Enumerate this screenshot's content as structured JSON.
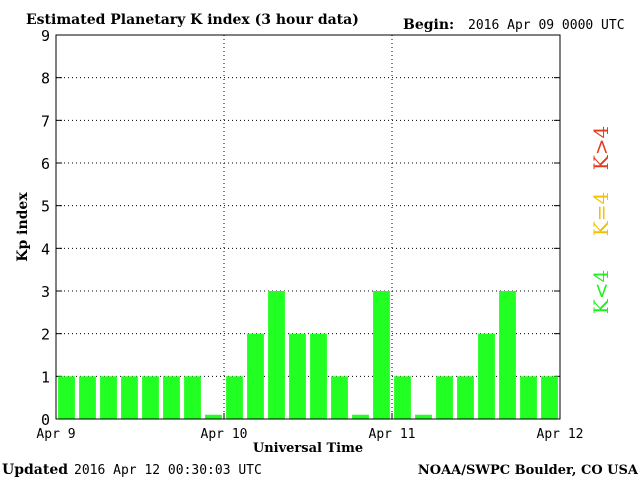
{
  "header": {
    "title": "Estimated Planetary K index (3 hour data)",
    "begin_label": "Begin:",
    "begin_value": "2016 Apr 09 0000 UTC"
  },
  "footer": {
    "updated_label": "Updated",
    "updated_value": "2016 Apr 12 00:30:03 UTC",
    "credit": "NOAA/SWPC Boulder, CO USA"
  },
  "legend": {
    "low": {
      "label": "K<4",
      "color": "#22ee22"
    },
    "mid": {
      "label": "K=4",
      "color": "#f2c200"
    },
    "high": {
      "label": "K>4",
      "color": "#e43b1a"
    }
  },
  "chart_data": {
    "type": "bar",
    "title": "Estimated Planetary K index (3 hour data)",
    "xlabel": "Universal Time",
    "ylabel": "Kp index",
    "ylim": [
      0,
      9
    ],
    "yticks": [
      0,
      1,
      2,
      3,
      4,
      5,
      6,
      7,
      8,
      9
    ],
    "xtick_labels": [
      "Apr 9",
      "Apr 10",
      "Apr 11",
      "Apr 12"
    ],
    "bar_hours": 3,
    "grid": "dotted",
    "bar_color": "#22ff22",
    "values": [
      1,
      1,
      1,
      1,
      1,
      1,
      1,
      0,
      1,
      2,
      3,
      2,
      2,
      1,
      0,
      3,
      1,
      0,
      1,
      1,
      2,
      3,
      1,
      1
    ]
  }
}
